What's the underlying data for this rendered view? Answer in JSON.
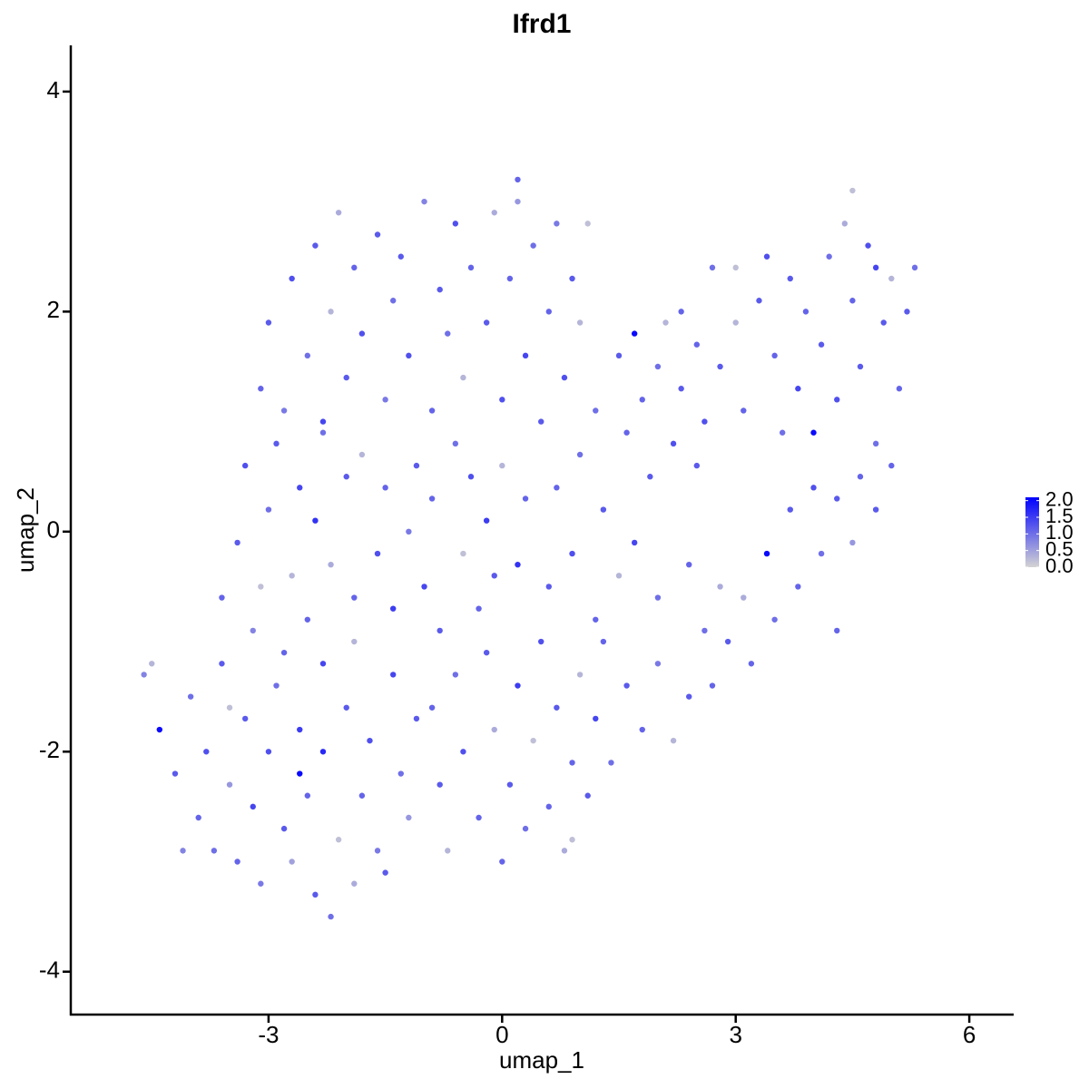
{
  "chart_data": {
    "type": "scatter",
    "title": "Ifrd1",
    "xlabel": "umap_1",
    "ylabel": "umap_2",
    "xlim": [
      -5.54,
      6.57
    ],
    "xticks": [
      -3,
      0,
      3,
      6
    ],
    "ylim": [
      -4.39,
      4.42
    ],
    "yticks": [
      -4,
      -2,
      0,
      2,
      4
    ],
    "colorbar": {
      "low": "lightgrey",
      "high": "blue",
      "lim": [
        0,
        2.1
      ],
      "ticks": [
        {
          "value": 0,
          "label": "0.0"
        },
        0.5,
        {
          "value": 1,
          "label": "1.0"
        },
        1.5,
        {
          "value": 2,
          "label": "2.0"
        }
      ]
    },
    "x": [
      -4.6,
      -4.5,
      -4.4,
      -4.2,
      -4.0,
      -3.9,
      -3.8,
      -3.7,
      -3.6,
      -3.5,
      -3.4,
      -3.3,
      -3.2,
      -3.1,
      -3.0,
      -2.9,
      -2.8,
      -2.7,
      -2.6,
      -2.5,
      -2.4,
      -2.3,
      -2.2,
      -2.1,
      -2.0,
      -1.9,
      -1.8,
      -1.7,
      -1.6,
      -1.5,
      -1.4,
      -1.3,
      -1.2,
      -1.1,
      -3.5,
      -2.8,
      -2.3,
      -1.9,
      -4.1,
      -2.6,
      -3.6,
      -3.4,
      -3.3,
      -3.2,
      -3.0,
      -2.9,
      -2.7,
      -2.6,
      -2.5,
      -2.4,
      -2.3,
      -2.2,
      -2.0,
      -1.9,
      -1.8,
      -1.6,
      -1.5,
      -1.4,
      -1.2,
      -1.1,
      -1.0,
      -0.9,
      -0.8,
      -0.6,
      -0.5,
      -0.4,
      -0.3,
      -0.2,
      -0.1,
      0.0,
      0.2,
      0.3,
      -3.1,
      -3.1,
      -3.0,
      -2.8,
      -2.7,
      -2.5,
      -2.4,
      -2.3,
      -2.2,
      -2.1,
      -2.0,
      -1.9,
      -1.8,
      -1.6,
      -1.5,
      -1.4,
      -1.3,
      -1.2,
      -1.0,
      -0.9,
      -0.8,
      -0.7,
      -0.6,
      -0.5,
      -0.4,
      -0.2,
      -0.1,
      0.0,
      0.1,
      0.2,
      0.3,
      0.4,
      0.5,
      0.6,
      0.7,
      0.8,
      0.9,
      1.0,
      1.2,
      1.1,
      0.2,
      -0.9,
      -0.8,
      -0.7,
      -0.6,
      -0.5,
      -0.3,
      -0.2,
      -0.1,
      0.0,
      0.1,
      0.2,
      0.3,
      0.4,
      0.5,
      0.6,
      0.7,
      0.8,
      0.9,
      1.0,
      1.1,
      1.2,
      1.3,
      1.4,
      1.6,
      1.8,
      2.0,
      2.2,
      2.4,
      0.9,
      0.6,
      0.7,
      0.9,
      1.0,
      1.2,
      1.3,
      1.5,
      1.6,
      1.7,
      1.9,
      2.0,
      2.2,
      2.4,
      2.5,
      2.6,
      2.8,
      1.5,
      1.7,
      1.8,
      2.0,
      2.1,
      2.3,
      2.5,
      2.6,
      2.7,
      2.8,
      3.0,
      3.1,
      3.3,
      3.4,
      3.5,
      3.6,
      3.7,
      3.8,
      3.9,
      4.0,
      4.1,
      4.2,
      4.3,
      4.4,
      4.5,
      4.6,
      4.7,
      4.8,
      4.9,
      5.0,
      5.1,
      5.2,
      5.3,
      4.5,
      4.8,
      5.0,
      3.0,
      2.3,
      2.7,
      2.9,
      3.1,
      3.2,
      3.4,
      3.5,
      3.7,
      3.8,
      4.0,
      4.1,
      4.3,
      4.5,
      4.6,
      4.8,
      4.3
    ],
    "y": [
      -1.3,
      -1.2,
      -1.8,
      -2.2,
      -1.5,
      -2.6,
      -2.0,
      -2.9,
      -1.2,
      -2.3,
      -3.0,
      -1.7,
      -2.5,
      -3.2,
      -2.0,
      -1.4,
      -2.7,
      -3.0,
      -1.8,
      -2.4,
      -3.3,
      -2.0,
      -3.5,
      -2.8,
      -1.6,
      -3.2,
      -2.4,
      -1.9,
      -2.9,
      -3.1,
      -1.3,
      -2.2,
      -2.6,
      -1.7,
      -1.6,
      -1.1,
      -1.2,
      -1.0,
      -2.9,
      -2.2,
      -0.6,
      -0.1,
      0.6,
      -0.9,
      0.2,
      0.8,
      -0.4,
      0.4,
      -0.8,
      0.1,
      0.9,
      -0.3,
      0.5,
      -0.6,
      0.7,
      -0.2,
      0.4,
      -0.7,
      0.0,
      0.6,
      -0.5,
      0.3,
      -0.9,
      0.8,
      -0.2,
      0.5,
      -0.7,
      0.1,
      -0.4,
      0.6,
      -0.3,
      0.3,
      -0.5,
      1.3,
      1.9,
      1.1,
      2.3,
      1.6,
      2.6,
      1.0,
      2.0,
      2.9,
      1.4,
      2.4,
      1.8,
      2.7,
      1.2,
      2.1,
      2.5,
      1.6,
      3.0,
      1.1,
      2.2,
      1.8,
      2.8,
      1.4,
      2.4,
      1.9,
      2.9,
      1.2,
      2.3,
      3.0,
      1.6,
      2.6,
      1.0,
      2.0,
      2.8,
      1.4,
      2.3,
      1.9,
      1.1,
      2.8,
      3.2,
      -1.6,
      -2.3,
      -2.9,
      -1.3,
      -2.0,
      -2.6,
      -1.1,
      -1.8,
      -3.0,
      -2.3,
      -1.4,
      -2.7,
      -1.9,
      -1.0,
      -2.5,
      -1.6,
      -2.9,
      -2.1,
      -1.3,
      -2.4,
      -1.7,
      -1.0,
      -2.1,
      -1.4,
      -1.8,
      -1.2,
      -1.9,
      -1.5,
      -2.8,
      -0.5,
      0.4,
      -0.2,
      0.7,
      -0.8,
      0.2,
      -0.4,
      0.9,
      -0.1,
      0.5,
      -0.6,
      0.8,
      -0.3,
      0.6,
      -0.9,
      -0.5,
      1.6,
      1.8,
      1.2,
      1.5,
      1.9,
      1.3,
      1.7,
      1.0,
      2.4,
      1.5,
      1.9,
      1.1,
      2.1,
      2.5,
      1.6,
      0.9,
      2.3,
      1.3,
      2.0,
      0.9,
      1.7,
      2.5,
      1.2,
      2.8,
      2.1,
      1.5,
      2.6,
      0.8,
      1.9,
      2.3,
      1.3,
      2.0,
      2.4,
      3.1,
      2.4,
      0.6,
      2.4,
      2.0,
      -1.4,
      -1.0,
      -0.6,
      -1.2,
      -0.2,
      -0.8,
      0.2,
      -0.5,
      0.4,
      -0.2,
      0.3,
      -0.1,
      0.5,
      0.2,
      -0.9
    ],
    "values": [
      0.8,
      0.3,
      2.0,
      1.2,
      1.0,
      1.1,
      1.3,
      1.0,
      1.2,
      0.6,
      1.1,
      1.2,
      1.4,
      0.9,
      1.3,
      1.0,
      1.2,
      0.5,
      1.5,
      1.1,
      1.2,
      1.7,
      1.0,
      0.2,
      1.2,
      0.4,
      1.1,
      1.3,
      0.9,
      1.2,
      1.4,
      1.0,
      0.6,
      1.2,
      0.2,
      1.1,
      1.4,
      0.3,
      0.8,
      2.0,
      1.1,
      1.2,
      1.3,
      0.8,
      1.0,
      1.2,
      0.3,
      1.4,
      1.1,
      1.6,
      1.0,
      0.4,
      1.2,
      1.1,
      0.3,
      1.3,
      1.1,
      1.5,
      0.9,
      1.2,
      1.4,
      1.1,
      1.2,
      1.0,
      0.2,
      1.3,
      1.1,
      1.5,
      1.2,
      0.3,
      1.6,
      1.1,
      0.2,
      1.1,
      1.2,
      0.9,
      1.3,
      1.0,
      1.2,
      1.4,
      0.3,
      0.4,
      1.2,
      1.1,
      1.3,
      1.2,
      0.9,
      1.0,
      1.2,
      1.3,
      0.8,
      1.1,
      1.2,
      1.0,
      1.3,
      0.3,
      1.1,
      1.2,
      0.4,
      1.3,
      1.1,
      0.6,
      1.4,
      1.0,
      1.2,
      1.1,
      0.9,
      1.3,
      1.2,
      0.3,
      1.0,
      0.2,
      1.1,
      1.1,
      1.2,
      0.3,
      1.0,
      1.3,
      1.1,
      1.2,
      0.4,
      1.1,
      1.2,
      1.5,
      1.0,
      0.2,
      1.3,
      1.1,
      1.2,
      0.4,
      1.1,
      0.3,
      1.2,
      1.4,
      1.1,
      1.0,
      1.2,
      1.1,
      0.9,
      0.3,
      1.2,
      0.2,
      1.2,
      1.1,
      1.3,
      1.0,
      1.1,
      1.2,
      0.3,
      1.1,
      1.4,
      1.2,
      1.0,
      1.3,
      1.1,
      1.2,
      1.0,
      0.4,
      1.2,
      2.0,
      1.1,
      1.0,
      0.3,
      1.2,
      1.1,
      1.3,
      1.0,
      1.2,
      0.3,
      1.1,
      1.2,
      1.3,
      1.1,
      1.0,
      1.2,
      1.4,
      1.1,
      2.0,
      1.2,
      1.0,
      1.3,
      0.4,
      1.1,
      1.2,
      1.3,
      1.0,
      1.2,
      0.3,
      1.1,
      1.2,
      1.0,
      0.2,
      1.4,
      1.1,
      0.2,
      1.1,
      1.1,
      1.2,
      0.4,
      1.1,
      2.0,
      1.0,
      1.2,
      1.1,
      1.3,
      1.0,
      1.2,
      0.6,
      1.1,
      1.2,
      1.1
    ]
  }
}
